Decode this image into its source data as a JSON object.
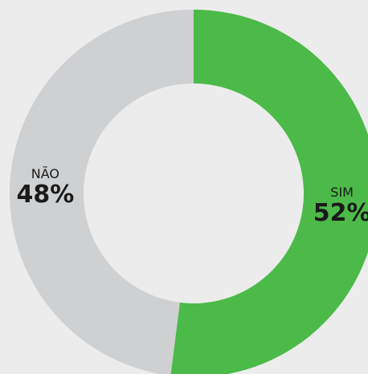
{
  "chart_data": {
    "type": "donut",
    "categories": [
      "SIM",
      "NÃO"
    ],
    "values": [
      52,
      48
    ],
    "value_labels": [
      "52%",
      "48%"
    ],
    "colors": [
      "#4cba48",
      "#cfd0d2"
    ]
  }
}
